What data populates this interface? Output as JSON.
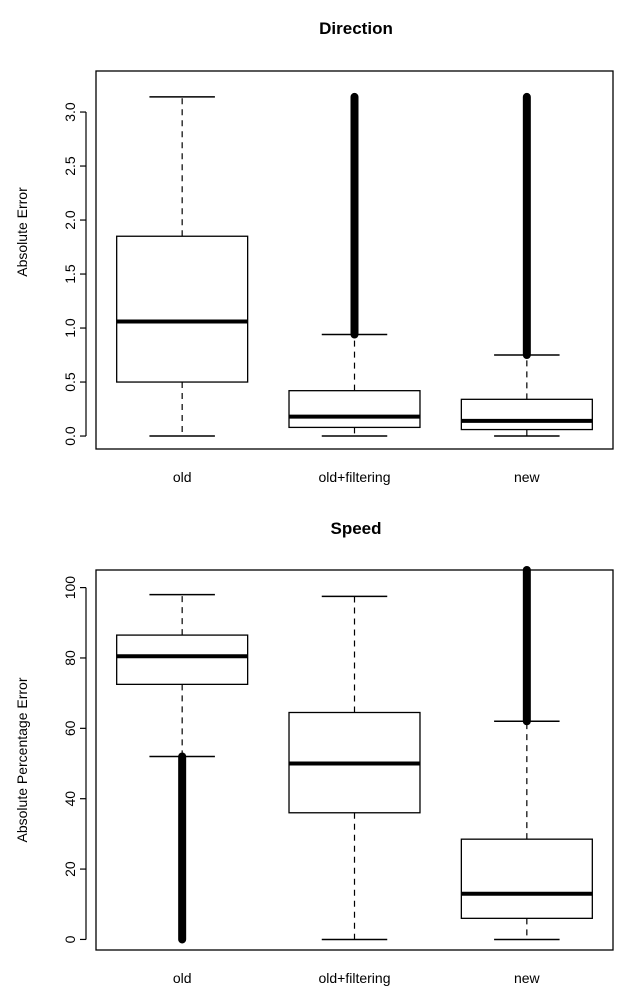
{
  "chart_data": [
    {
      "type": "box",
      "title": "Direction",
      "xlabel": "",
      "ylabel": "Absolute Error",
      "ylim": [
        -0.12,
        3.38
      ],
      "yticks": [
        "0.0",
        "0.5",
        "1.0",
        "1.5",
        "2.0",
        "2.5",
        "3.0"
      ],
      "categories": [
        "old",
        "old+filtering",
        "new"
      ],
      "boxes": [
        {
          "category": "old",
          "min": 0.0,
          "q1": 0.5,
          "median": 1.06,
          "q3": 1.85,
          "max": 3.14,
          "outliers": []
        },
        {
          "category": "old+filtering",
          "min": 0.0,
          "q1": 0.08,
          "median": 0.18,
          "q3": 0.42,
          "max": 0.94,
          "outliers": [
            [
              0.94,
              3.14
            ]
          ]
        },
        {
          "category": "new",
          "min": 0.0,
          "q1": 0.06,
          "median": 0.14,
          "q3": 0.34,
          "max": 0.75,
          "outliers": [
            [
              0.75,
              3.14
            ]
          ]
        }
      ]
    },
    {
      "type": "box",
      "title": "Speed",
      "xlabel": "",
      "ylabel": "Absolute Percentage Error",
      "ylim": [
        -3,
        105
      ],
      "yticks": [
        "0",
        "20",
        "40",
        "60",
        "80",
        "100"
      ],
      "categories": [
        "old",
        "old+filtering",
        "new"
      ],
      "boxes": [
        {
          "category": "old",
          "min": 52,
          "q1": 72.5,
          "median": 80.5,
          "q3": 86.5,
          "max": 98,
          "outliers": [
            [
              0,
              52
            ]
          ]
        },
        {
          "category": "old+filtering",
          "min": 0,
          "q1": 36,
          "median": 50,
          "q3": 64.5,
          "max": 97.5,
          "outliers": []
        },
        {
          "category": "new",
          "min": 0,
          "q1": 6,
          "median": 13,
          "q3": 28.5,
          "max": 62,
          "outliers": [
            [
              62,
              105
            ]
          ]
        }
      ]
    }
  ]
}
